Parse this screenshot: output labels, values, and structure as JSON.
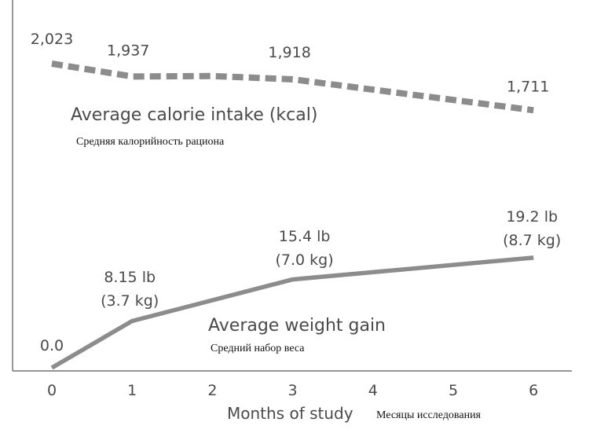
{
  "chart_data": {
    "type": "line",
    "x": [
      0,
      1,
      2,
      3,
      4,
      5,
      6
    ],
    "xlabel": "Months of study",
    "xlabel_translation": "Месяцы исследования",
    "xlim": [
      0,
      6
    ],
    "ylim": [
      0,
      20
    ],
    "colors": {
      "line": "#8c8c8c",
      "text": "#4a4a4a",
      "axis": "#555555"
    },
    "series": [
      {
        "name": "Average calorie intake (kcal)",
        "name_translation": "Средняя калорийность рациона",
        "style": "dashed",
        "points": [
          {
            "x": 0,
            "y": 2023,
            "label": "2,023"
          },
          {
            "x": 1,
            "y": 1937,
            "label": "1,937"
          },
          {
            "x": 2,
            "y": 1940
          },
          {
            "x": 3,
            "y": 1918,
            "label": "1,918"
          },
          {
            "x": 6,
            "y": 1711,
            "label": "1,711"
          }
        ]
      },
      {
        "name": "Average weight gain",
        "name_translation": "Средний набор веса",
        "style": "solid",
        "points": [
          {
            "x": 0,
            "y": 0.0,
            "label": "0.0"
          },
          {
            "x": 1,
            "y": 8.15,
            "label": "8.15 lb",
            "label2": "(3.7 kg)"
          },
          {
            "x": 3,
            "y": 15.4,
            "label": "15.4 lb",
            "label2": "(7.0 kg)"
          },
          {
            "x": 6,
            "y": 19.2,
            "label": "19.2 lb",
            "label2": "(8.7 kg)"
          }
        ]
      }
    ]
  }
}
